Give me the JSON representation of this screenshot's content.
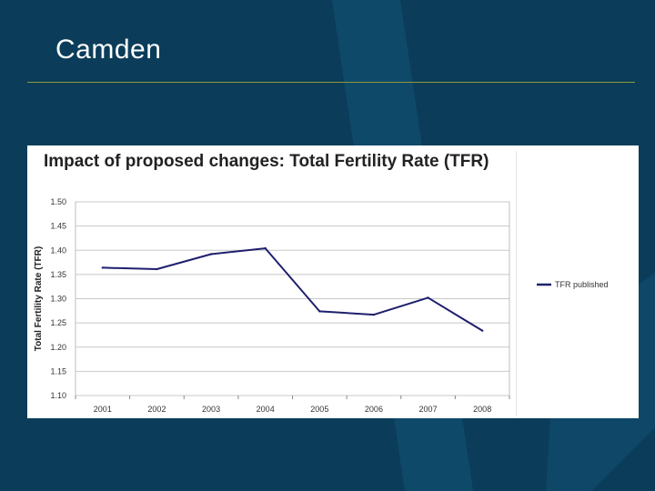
{
  "slide": {
    "title": "Camden"
  },
  "colors": {
    "background": "#0b3d5a",
    "rule": "#8c9a3c",
    "series": "#1f1f6e"
  },
  "chart_data": {
    "type": "line",
    "title": "Impact of proposed changes: Total Fertility Rate (TFR)",
    "xlabel": "",
    "ylabel": "Total Fertility Rate (TFR)",
    "categories": [
      "2001",
      "2002",
      "2003",
      "2004",
      "2005",
      "2006",
      "2007",
      "2008"
    ],
    "ylim": [
      1.1,
      1.5
    ],
    "yticks": [
      "1.50",
      "1.45",
      "1.40",
      "1.35",
      "1.30",
      "1.25",
      "1.20",
      "1.15",
      "1.10"
    ],
    "grid": true,
    "legend_position": "right",
    "series": [
      {
        "name": "TFR published",
        "values": [
          1.364,
          1.361,
          1.392,
          1.404,
          1.274,
          1.267,
          1.302,
          1.234
        ]
      }
    ]
  }
}
